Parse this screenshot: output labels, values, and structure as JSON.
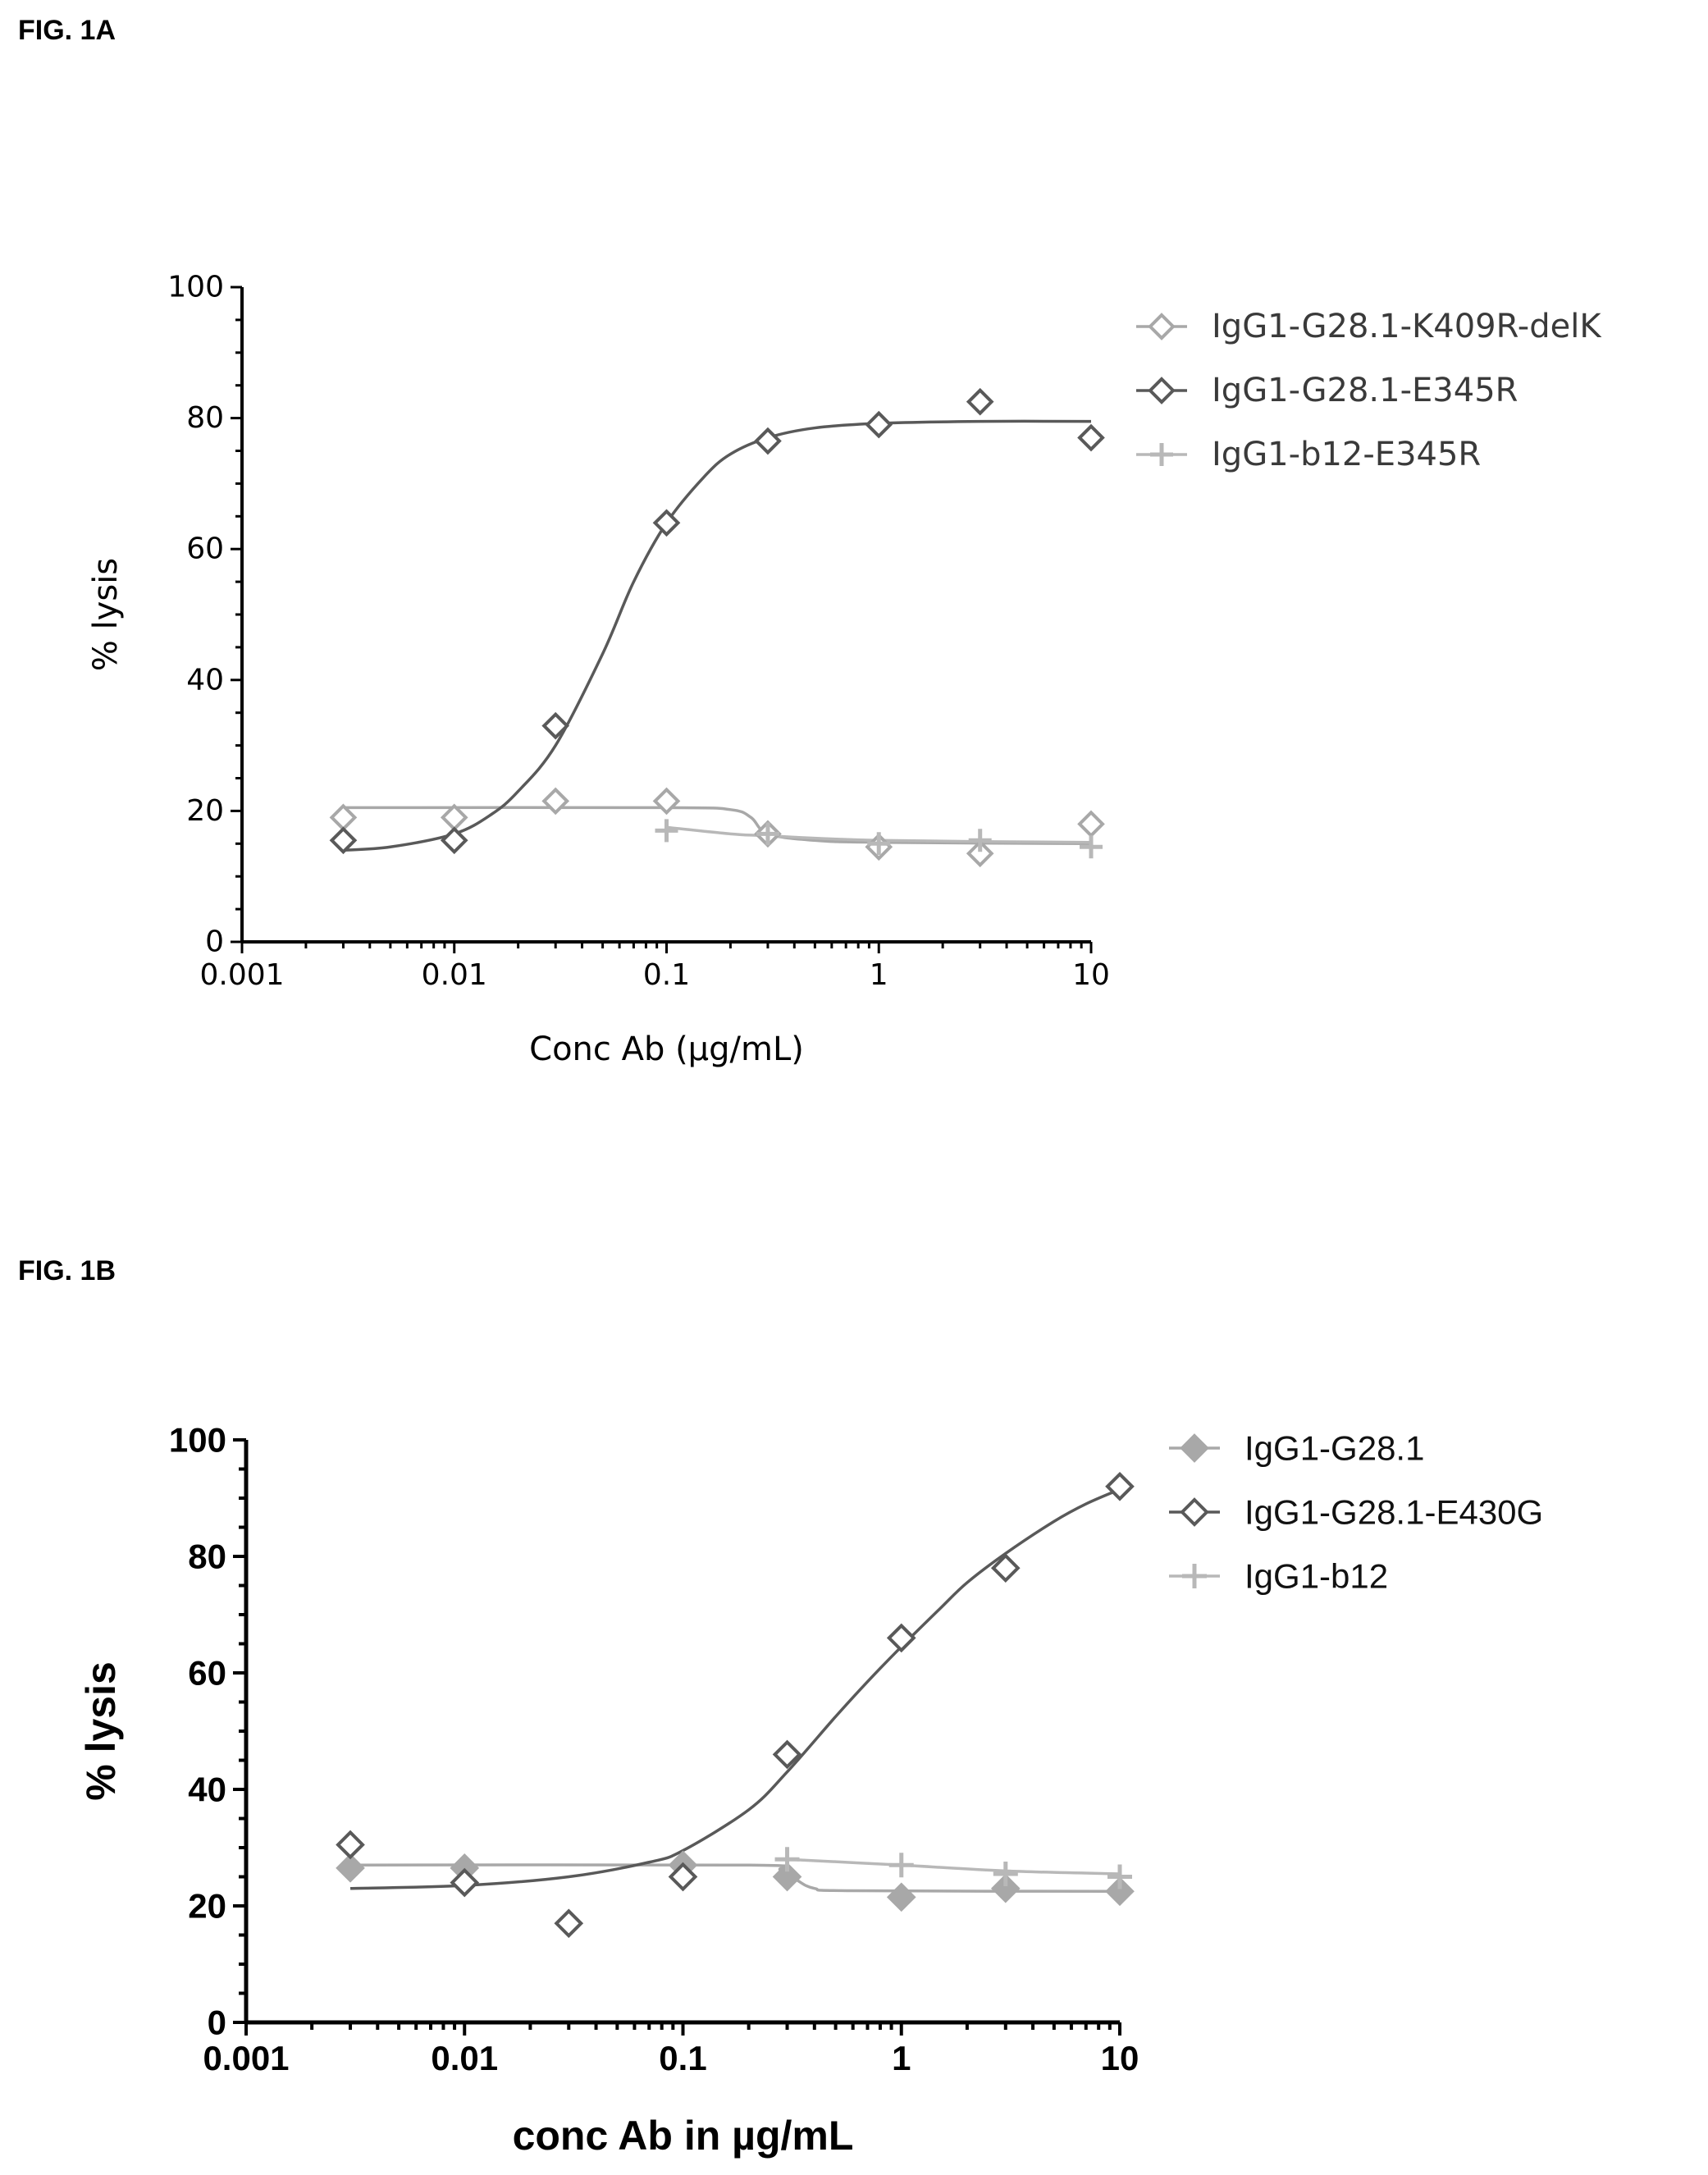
{
  "figures": {
    "a_label": "FIG. 1A",
    "b_label": "FIG. 1B"
  },
  "chart_data": [
    {
      "id": "a",
      "type": "scatter",
      "x_scale": "log",
      "xlim": [
        0.001,
        10
      ],
      "ylim": [
        0,
        100
      ],
      "xlabel": "Conc Ab (µg/mL)",
      "ylabel": "% lysis",
      "xticks": [
        "0.001",
        "0.01",
        "0.1",
        "1",
        "10"
      ],
      "yticks": [
        "0",
        "20",
        "40",
        "60",
        "80",
        "100"
      ],
      "legend_position": "top-right",
      "series": [
        {
          "name": "IgG1-G28.1-K409R-delK",
          "color": "#a8a8a8",
          "marker": "diamond-open",
          "x": [
            0.003,
            0.01,
            0.03,
            0.1,
            0.3,
            1,
            3,
            10
          ],
          "y": [
            19,
            19,
            21.5,
            21.5,
            16.5,
            14.5,
            13.5,
            18
          ],
          "fit": [
            [
              0.003,
              20.5
            ],
            [
              0.1,
              20.5
            ],
            [
              0.2,
              20.2
            ],
            [
              0.25,
              19
            ],
            [
              0.3,
              16.5
            ],
            [
              0.5,
              15.5
            ],
            [
              1,
              15.2
            ],
            [
              10,
              15
            ]
          ]
        },
        {
          "name": "IgG1-G28.1-E345R",
          "color": "#595959",
          "marker": "diamond-open",
          "x": [
            0.003,
            0.01,
            0.03,
            0.1,
            0.3,
            1,
            3,
            10
          ],
          "y": [
            15.5,
            15.5,
            33,
            64,
            76.5,
            79,
            82.5,
            77
          ],
          "fit": [
            [
              0.003,
              14
            ],
            [
              0.005,
              14.5
            ],
            [
              0.01,
              16.5
            ],
            [
              0.015,
              19.5
            ],
            [
              0.02,
              23
            ],
            [
              0.03,
              30
            ],
            [
              0.05,
              44
            ],
            [
              0.07,
              55
            ],
            [
              0.1,
              64
            ],
            [
              0.15,
              71
            ],
            [
              0.2,
              74.5
            ],
            [
              0.3,
              77
            ],
            [
              0.5,
              78.5
            ],
            [
              1,
              79.2
            ],
            [
              3,
              79.5
            ],
            [
              10,
              79.5
            ]
          ]
        },
        {
          "name": "IgG1-b12-E345R",
          "color": "#b8b8b8",
          "marker": "plus",
          "x": [
            0.1,
            0.3,
            1,
            3,
            10
          ],
          "y": [
            17,
            16.5,
            15,
            15.5,
            14.5
          ],
          "fit": [
            [
              0.1,
              17.5
            ],
            [
              0.2,
              16.5
            ],
            [
              0.3,
              16.2
            ],
            [
              1,
              15.5
            ],
            [
              10,
              15.2
            ]
          ]
        }
      ]
    },
    {
      "id": "b",
      "type": "scatter",
      "x_scale": "log",
      "xlim": [
        0.001,
        10
      ],
      "ylim": [
        0,
        100
      ],
      "xlabel": "conc Ab in µg/mL",
      "ylabel": "% lysis",
      "xticks": [
        "0.001",
        "0.01",
        "0.1",
        "1",
        "10"
      ],
      "yticks": [
        "0",
        "20",
        "40",
        "60",
        "80",
        "100"
      ],
      "legend_position": "top-right",
      "series": [
        {
          "name": "IgG1-G28.1",
          "color": "#a8a8a8",
          "marker": "diamond-filled",
          "x": [
            0.003,
            0.01,
            0.1,
            0.3,
            1,
            3,
            10
          ],
          "y": [
            26.5,
            26.5,
            27,
            25,
            21.5,
            23,
            22.5
          ],
          "fit": [
            [
              0.003,
              27
            ],
            [
              0.2,
              27
            ],
            [
              0.28,
              26.2
            ],
            [
              0.33,
              24.5
            ],
            [
              0.4,
              23
            ],
            [
              0.6,
              22.6
            ],
            [
              10,
              22.5
            ]
          ]
        },
        {
          "name": "IgG1-G28.1-E430G",
          "color": "#595959",
          "marker": "diamond-open",
          "x": [
            0.003,
            0.01,
            0.03,
            0.1,
            0.3,
            1,
            3,
            10
          ],
          "y": [
            30.5,
            24,
            17,
            25,
            46,
            66,
            78,
            92
          ],
          "fit": [
            [
              0.003,
              23
            ],
            [
              0.01,
              23.5
            ],
            [
              0.03,
              25
            ],
            [
              0.07,
              27.5
            ],
            [
              0.1,
              29.5
            ],
            [
              0.2,
              36.5
            ],
            [
              0.3,
              43
            ],
            [
              0.5,
              52.5
            ],
            [
              0.7,
              58.5
            ],
            [
              1,
              64.5
            ],
            [
              1.5,
              71
            ],
            [
              2,
              75.5
            ],
            [
              3,
              80.5
            ],
            [
              5,
              86
            ],
            [
              7,
              89
            ],
            [
              10,
              91.5
            ]
          ]
        },
        {
          "name": "IgG1-b12",
          "color": "#b8b8b8",
          "marker": "plus",
          "x": [
            0.3,
            1,
            3,
            10
          ],
          "y": [
            28,
            27,
            25.5,
            25
          ],
          "fit": [
            [
              0.3,
              28
            ],
            [
              1,
              27
            ],
            [
              3,
              26
            ],
            [
              10,
              25.5
            ]
          ]
        }
      ]
    }
  ]
}
